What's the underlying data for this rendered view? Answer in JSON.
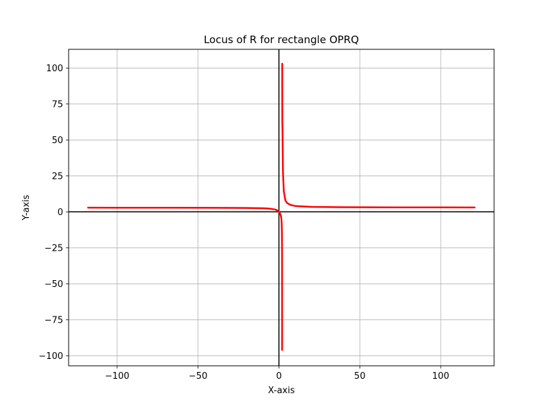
{
  "chart_data": {
    "type": "line",
    "title": "Locus of R for rectangle OPRQ",
    "xlabel": "X-axis",
    "ylabel": "Y-axis",
    "xlim": [
      -130,
      133
    ],
    "ylim": [
      -107,
      113
    ],
    "grid": true,
    "xticks": [
      -100,
      -50,
      0,
      50,
      100
    ],
    "yticks": [
      -100,
      -75,
      -50,
      -25,
      0,
      25,
      50,
      75,
      100
    ],
    "xtick_labels": [
      "−100",
      "−50",
      "0",
      "50",
      "100"
    ],
    "ytick_labels": [
      "−100",
      "−75",
      "−50",
      "−25",
      "0",
      "25",
      "50",
      "75",
      "100"
    ],
    "reference_lines": {
      "x": 0,
      "y": 0
    },
    "series": [
      {
        "color": "#ff0000",
        "branches": [
          {
            "x": [
              2.03,
              2.05,
              2.1,
              2.2,
              2.3,
              2.5,
              3,
              4,
              5,
              7,
              10,
              20,
              40,
              70,
              100,
              121
            ],
            "y": [
              103,
              83,
              63,
              58,
              48,
              27.6,
              14.4,
              7.9,
              6.2,
              4.9,
              4.1,
              3.5,
              3.25,
              3.14,
              3.1,
              3.08
            ]
          },
          {
            "x": [
              -118,
              -100,
              -70,
              -40,
              -20,
              -10,
              -7,
              -5,
              -3,
              -2,
              -1.5,
              -1,
              -0.5,
              -0.2,
              0,
              0.3,
              0.6,
              1,
              1.3,
              1.5,
              1.7,
              1.85,
              1.93,
              1.97
            ],
            "y": [
              2.92,
              2.91,
              2.88,
              2.85,
              2.72,
              2.5,
              2.33,
              2.1,
              1.78,
              1.47,
              1.25,
              0.96,
              0.57,
              0.23,
              0,
              -0.41,
              -0.9,
              -2,
              -3.25,
              -4.7,
              -8.2,
              -15.3,
              -31.3,
              -96
            ]
          }
        ]
      }
    ]
  }
}
